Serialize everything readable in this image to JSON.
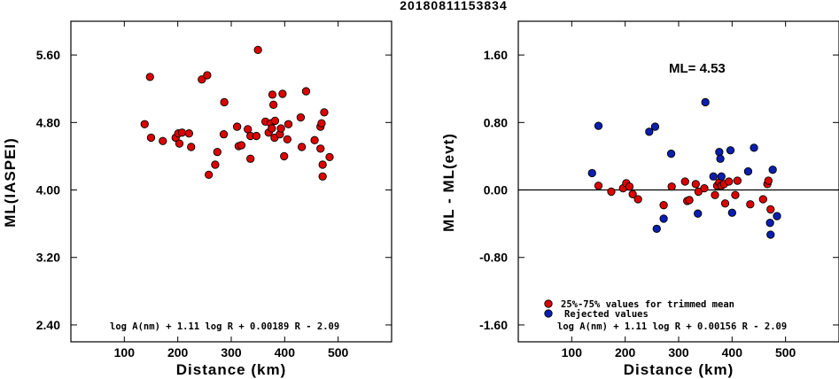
{
  "figure_title": "20180811153834",
  "colors": {
    "accepted": "#dd0000",
    "rejected": "#0a1fb0"
  },
  "chart_data": [
    {
      "type": "scatter",
      "id": "left",
      "xlabel": "Distance (km)",
      "ylabel": "ML(IASPEI)",
      "xlim": [
        0,
        600
      ],
      "ylim": [
        2.2,
        6.0
      ],
      "xticks": [
        100,
        200,
        300,
        400,
        500
      ],
      "xtick_labels": [
        "100",
        "200",
        "300",
        "400",
        "500"
      ],
      "yticks": [
        2.4,
        3.2,
        4.0,
        4.8,
        5.6
      ],
      "ytick_labels": [
        "2.40",
        "3.20",
        "4.00",
        "4.80",
        "5.60"
      ],
      "formula": "log A(nm) + 1.11 log R + 0.00189 R - 2.09",
      "series": [
        {
          "color": "accepted",
          "points": [
            [
              138,
              4.78
            ],
            [
              148,
              5.34
            ],
            [
              150,
              4.62
            ],
            [
              172,
              4.58
            ],
            [
              196,
              4.62
            ],
            [
              201,
              4.67
            ],
            [
              203,
              4.55
            ],
            [
              208,
              4.68
            ],
            [
              221,
              4.67
            ],
            [
              225,
              4.51
            ],
            [
              245,
              5.31
            ],
            [
              255,
              5.36
            ],
            [
              258,
              4.18
            ],
            [
              270,
              4.3
            ],
            [
              274,
              4.45
            ],
            [
              286,
              4.66
            ],
            [
              287,
              5.04
            ],
            [
              311,
              4.75
            ],
            [
              314,
              4.52
            ],
            [
              319,
              4.53
            ],
            [
              331,
              4.72
            ],
            [
              336,
              4.64
            ],
            [
              336,
              4.37
            ],
            [
              347,
              4.64
            ],
            [
              350,
              5.66
            ],
            [
              364,
              4.81
            ],
            [
              370,
              4.68
            ],
            [
              374,
              4.79
            ],
            [
              376,
              4.73
            ],
            [
              377,
              5.13
            ],
            [
              379,
              5.01
            ],
            [
              381,
              4.62
            ],
            [
              382,
              4.82
            ],
            [
              391,
              4.66
            ],
            [
              393,
              4.73
            ],
            [
              396,
              5.14
            ],
            [
              399,
              4.4
            ],
            [
              405,
              4.6
            ],
            [
              407,
              4.78
            ],
            [
              430,
              4.86
            ],
            [
              432,
              4.51
            ],
            [
              440,
              5.17
            ],
            [
              456,
              4.59
            ],
            [
              467,
              4.49
            ],
            [
              467,
              4.75
            ],
            [
              469,
              4.79
            ],
            [
              471,
              4.3
            ],
            [
              471,
              4.16
            ],
            [
              474,
              4.92
            ],
            [
              484,
              4.39
            ]
          ]
        }
      ]
    },
    {
      "type": "scatter",
      "id": "right",
      "xlabel": "Distance (km)",
      "ylabel": "ML - ML(evt)",
      "xlim": [
        0,
        600
      ],
      "ylim": [
        -1.8,
        2.0
      ],
      "xticks": [
        100,
        200,
        300,
        400,
        500
      ],
      "xtick_labels": [
        "100",
        "200",
        "300",
        "400",
        "500"
      ],
      "yticks": [
        -1.6,
        -0.8,
        0.0,
        0.8,
        1.6
      ],
      "ytick_labels": [
        "-1.60",
        "-0.80",
        "0.00",
        "0.80",
        "1.60"
      ],
      "reference_line": 0.0,
      "ml_label": "ML= 4.53",
      "formula": "log A(nm) + 1.11 log R + 0.00156 R - 2.09",
      "legend": [
        {
          "color": "accepted",
          "label": "25%-75% values for trimmed mean"
        },
        {
          "color": "rejected",
          "label": "Rejected values"
        }
      ],
      "series": [
        {
          "color": "accepted",
          "points": [
            [
              150,
              0.05
            ],
            [
              174,
              -0.02
            ],
            [
              196,
              0.02
            ],
            [
              202,
              0.08
            ],
            [
              208,
              0.04
            ],
            [
              214,
              -0.05
            ],
            [
              224,
              -0.11
            ],
            [
              272,
              -0.18
            ],
            [
              287,
              0.04
            ],
            [
              312,
              0.1
            ],
            [
              316,
              -0.13
            ],
            [
              320,
              -0.12
            ],
            [
              332,
              0.07
            ],
            [
              337,
              -0.02
            ],
            [
              348,
              0.02
            ],
            [
              368,
              -0.06
            ],
            [
              372,
              0.05
            ],
            [
              376,
              0.09
            ],
            [
              380,
              0.05
            ],
            [
              385,
              0.07
            ],
            [
              387,
              -0.16
            ],
            [
              394,
              0.1
            ],
            [
              406,
              -0.06
            ],
            [
              410,
              0.11
            ],
            [
              434,
              -0.17
            ],
            [
              458,
              -0.11
            ],
            [
              466,
              0.07
            ],
            [
              468,
              0.11
            ],
            [
              472,
              -0.23
            ]
          ]
        },
        {
          "color": "rejected",
          "points": [
            [
              138,
              0.2
            ],
            [
              150,
              0.76
            ],
            [
              245,
              0.69
            ],
            [
              256,
              0.75
            ],
            [
              259,
              -0.46
            ],
            [
              272,
              -0.34
            ],
            [
              286,
              0.43
            ],
            [
              336,
              -0.28
            ],
            [
              350,
              1.04
            ],
            [
              365,
              0.16
            ],
            [
              376,
              0.45
            ],
            [
              378,
              0.37
            ],
            [
              380,
              0.16
            ],
            [
              397,
              0.47
            ],
            [
              400,
              -0.27
            ],
            [
              441,
              0.5
            ],
            [
              430,
              0.22
            ],
            [
              471,
              -0.39
            ],
            [
              472,
              -0.53
            ],
            [
              476,
              0.24
            ],
            [
              484,
              -0.31
            ]
          ]
        }
      ]
    }
  ]
}
